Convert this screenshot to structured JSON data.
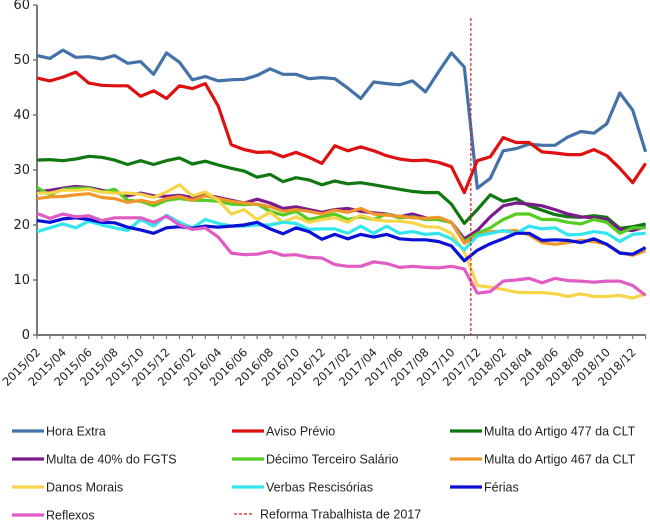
{
  "chart_data": {
    "type": "line",
    "title": "",
    "xlabel": "",
    "ylabel": "",
    "ylim": [
      0,
      60
    ],
    "yticks": [
      0,
      10,
      20,
      30,
      40,
      50,
      60
    ],
    "grid": false,
    "legend_position": "bottom",
    "x": [
      "2015/02",
      "2015/03",
      "2015/04",
      "2015/05",
      "2015/06",
      "2015/07",
      "2015/08",
      "2015/09",
      "2015/10",
      "2015/11",
      "2015/12",
      "2016/01",
      "2016/02",
      "2016/03",
      "2016/04",
      "2016/05",
      "2016/06",
      "2016/07",
      "2016/08",
      "2016/09",
      "2016/10",
      "2016/11",
      "2016/12",
      "2017/01",
      "2017/02",
      "2017/03",
      "2017/04",
      "2017/05",
      "2017/06",
      "2017/07",
      "2017/08",
      "2017/09",
      "2017/10",
      "2017/11",
      "2017/12",
      "2018/01",
      "2018/02",
      "2018/03",
      "2018/04",
      "2018/05",
      "2018/06",
      "2018/07",
      "2018/08",
      "2018/09",
      "2018/10",
      "2018/11",
      "2018/12",
      "2019/01"
    ],
    "xtick_labels": [
      "2015/02",
      "2015/04",
      "2015/06",
      "2015/08",
      "2015/10",
      "2015/12",
      "2016/02",
      "2016/04",
      "2016/06",
      "2016/08",
      "2016/10",
      "2016/12",
      "2017/02",
      "2017/04",
      "2017/06",
      "2017/08",
      "2017/10",
      "2017/12",
      "2018/02",
      "2018/04",
      "2018/06",
      "2018/08",
      "2018/10",
      "2018/12"
    ],
    "series": [
      {
        "name": "Hora Extra",
        "color": "#4472a8",
        "values": [
          50.8,
          50.3,
          51.8,
          50.5,
          50.6,
          50.2,
          50.8,
          49.4,
          49.7,
          47.4,
          51.3,
          49.6,
          46.4,
          47.0,
          46.2,
          46.4,
          46.5,
          47.2,
          48.4,
          47.4,
          47.4,
          46.6,
          46.8,
          46.6,
          44.9,
          43.0,
          46.0,
          45.7,
          45.5,
          46.2,
          44.2,
          47.8,
          51.3,
          48.7,
          26.7,
          28.5,
          33.5,
          33.9,
          34.7,
          34.5,
          34.5,
          36.0,
          37.0,
          36.7,
          38.4,
          44.0,
          40.9,
          33.3
        ]
      },
      {
        "name": "Aviso Prévio",
        "color": "#dd1111",
        "values": [
          46.7,
          46.2,
          46.9,
          47.8,
          45.8,
          45.4,
          45.3,
          45.3,
          43.4,
          44.4,
          43.0,
          45.3,
          44.8,
          45.7,
          41.6,
          34.6,
          33.7,
          33.2,
          33.3,
          32.4,
          33.2,
          32.3,
          31.2,
          34.4,
          33.5,
          34.2,
          33.5,
          32.6,
          32.0,
          31.7,
          31.8,
          31.4,
          30.6,
          25.9,
          31.7,
          32.4,
          35.9,
          35.0,
          35.0,
          33.3,
          33.1,
          32.8,
          32.8,
          33.7,
          32.6,
          30.3,
          27.7,
          31.2
        ]
      },
      {
        "name": "Multa do Artigo 477 da CLT",
        "color": "#117711",
        "values": [
          31.8,
          31.9,
          31.7,
          32.0,
          32.5,
          32.3,
          31.8,
          31.0,
          31.7,
          31.0,
          31.7,
          32.2,
          31.1,
          31.6,
          30.9,
          30.3,
          29.8,
          28.7,
          29.2,
          27.9,
          28.6,
          28.2,
          27.3,
          28.0,
          27.5,
          27.7,
          27.3,
          26.9,
          26.5,
          26.1,
          25.9,
          25.9,
          23.8,
          20.3,
          22.8,
          25.5,
          24.3,
          24.8,
          23.5,
          22.7,
          21.9,
          21.5,
          21.4,
          21.7,
          21.4,
          19.4,
          19.7,
          20.2
        ]
      },
      {
        "name": "Multa de 40% do FGTS",
        "color": "#7b1a8c",
        "values": [
          26.0,
          26.3,
          26.7,
          27.0,
          26.8,
          26.3,
          26.0,
          25.3,
          25.8,
          25.3,
          25.2,
          25.4,
          25.0,
          25.5,
          25.0,
          24.5,
          24.0,
          24.7,
          24.0,
          23.0,
          23.3,
          22.8,
          22.3,
          22.8,
          23.0,
          22.5,
          22.2,
          22.0,
          21.5,
          22.0,
          21.3,
          21.0,
          20.5,
          17.5,
          19.0,
          21.5,
          23.5,
          24.0,
          23.8,
          23.5,
          22.8,
          22.0,
          21.5,
          21.3,
          21.0,
          19.2,
          19.0,
          19.7
        ]
      },
      {
        "name": "Décimo Terceiro Salário",
        "color": "#55cc22",
        "values": [
          26.8,
          25.5,
          26.5,
          26.7,
          26.7,
          26.0,
          26.5,
          24.5,
          24.3,
          23.5,
          24.5,
          24.8,
          24.5,
          24.5,
          24.3,
          23.8,
          23.7,
          23.8,
          22.5,
          21.8,
          22.5,
          21.0,
          21.5,
          22.0,
          21.0,
          21.5,
          21.0,
          22.0,
          21.3,
          21.5,
          21.0,
          21.0,
          20.5,
          17.0,
          18.5,
          19.5,
          21.0,
          22.0,
          22.0,
          21.0,
          21.0,
          20.5,
          20.2,
          21.0,
          20.5,
          18.5,
          19.5,
          19.5
        ]
      },
      {
        "name": "Multa do Artigo 467 da CLT",
        "color": "#f0962a",
        "values": [
          24.8,
          25.1,
          25.2,
          25.5,
          25.7,
          25.0,
          24.8,
          24.1,
          24.5,
          24.0,
          24.8,
          25.2,
          24.5,
          25.3,
          24.8,
          24.3,
          24.0,
          23.8,
          23.3,
          22.5,
          22.8,
          22.5,
          22.0,
          22.7,
          22.3,
          23.0,
          22.0,
          21.8,
          21.6,
          21.3,
          21.2,
          21.4,
          20.5,
          16.7,
          18.0,
          18.8,
          18.9,
          19.0,
          18.2,
          16.8,
          16.5,
          16.8,
          17.2,
          17.0,
          16.5,
          15.0,
          14.5,
          15.3
        ]
      },
      {
        "name": "Danos Morais",
        "color": "#f7d54a",
        "values": [
          25.8,
          25.8,
          26.3,
          26.3,
          26.5,
          26.0,
          25.8,
          25.8,
          25.6,
          25.0,
          26.0,
          27.3,
          25.3,
          26.0,
          24.5,
          22.0,
          22.8,
          21.0,
          22.3,
          20.5,
          21.5,
          20.5,
          21.0,
          21.3,
          20.5,
          21.8,
          21.0,
          20.7,
          20.7,
          20.4,
          19.7,
          19.6,
          18.5,
          15.1,
          9.0,
          8.7,
          8.3,
          7.8,
          7.7,
          7.7,
          7.5,
          7.0,
          7.5,
          7.0,
          7.0,
          7.2,
          6.7,
          7.5
        ]
      },
      {
        "name": "Verbas Rescisórias",
        "color": "#33e5ee",
        "values": [
          18.8,
          19.5,
          20.2,
          19.5,
          20.7,
          20.0,
          19.5,
          19.0,
          21.0,
          19.8,
          21.8,
          20.5,
          19.5,
          21.0,
          20.3,
          19.8,
          19.8,
          20.0,
          20.0,
          20.5,
          20.3,
          19.2,
          19.3,
          19.3,
          18.5,
          19.8,
          18.5,
          19.8,
          18.5,
          18.8,
          18.3,
          18.5,
          17.5,
          15.5,
          18.0,
          18.5,
          19.0,
          18.5,
          19.8,
          19.3,
          19.5,
          18.2,
          18.3,
          18.8,
          18.5,
          17.0,
          18.3,
          18.5
        ]
      },
      {
        "name": "Férias",
        "color": "#0a10d6",
        "values": [
          20.8,
          20.5,
          21.1,
          21.3,
          21.0,
          20.5,
          20.4,
          19.6,
          19.1,
          18.5,
          19.5,
          19.7,
          19.4,
          19.8,
          19.6,
          19.8,
          20.0,
          20.5,
          19.3,
          18.4,
          19.5,
          18.8,
          17.4,
          18.3,
          17.5,
          18.3,
          17.8,
          18.3,
          17.5,
          17.3,
          17.3,
          17.0,
          16.2,
          13.5,
          15.4,
          16.6,
          17.5,
          18.5,
          18.5,
          17.2,
          17.3,
          17.2,
          16.8,
          17.5,
          16.5,
          14.9,
          14.7,
          15.9
        ]
      },
      {
        "name": "Reflexos",
        "color": "#e05cc4",
        "values": [
          22.1,
          21.2,
          22.0,
          21.5,
          21.7,
          20.8,
          21.3,
          21.3,
          21.3,
          20.5,
          21.6,
          20.0,
          19.2,
          19.5,
          17.8,
          14.9,
          14.6,
          14.7,
          15.2,
          14.5,
          14.6,
          14.1,
          14.0,
          12.8,
          12.5,
          12.5,
          13.3,
          13.0,
          12.3,
          12.5,
          12.3,
          12.2,
          12.5,
          12.0,
          7.6,
          7.9,
          9.8,
          10.0,
          10.3,
          9.5,
          10.3,
          9.9,
          9.8,
          9.6,
          9.8,
          9.8,
          9.0,
          7.2
        ]
      }
    ],
    "annotations": [
      {
        "type": "vertical-dashed-line",
        "between": [
          "2017/11",
          "2017/12"
        ],
        "label": "Reforma Trabalhista de 2017",
        "color": "#cc2222"
      }
    ]
  }
}
